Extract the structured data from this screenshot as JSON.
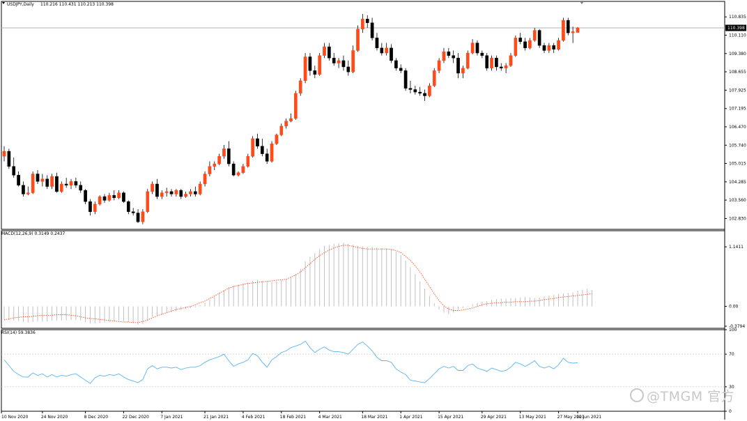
{
  "chart_data": [
    {
      "type": "candlestick",
      "title": "USDJPY,Daily",
      "ohlc_text": "110.216 110.431 110.213 110.398",
      "current_price": 110.398,
      "current_price_label": "110.398",
      "ylim": [
        102.4,
        111.45
      ],
      "y_ticks": [
        "110.835",
        "110.110",
        "109.380",
        "108.655",
        "107.925",
        "107.195",
        "106.470",
        "105.740",
        "105.015",
        "104.285",
        "103.560",
        "102.830"
      ],
      "x_ticks": [
        "10 Nov 2020",
        "24 Nov 2020",
        "8 Dec 2020",
        "22 Dec 2020",
        "7 Jan 2021",
        "21 Jan 2021",
        "4 Feb 2021",
        "18 Feb 2021",
        "4 Mar 2021",
        "18 Mar 2021",
        "1 Apr 2021",
        "15 Apr 2021",
        "29 Apr 2021",
        "13 May 2021",
        "27 May 2021",
        "10 Jun 2021"
      ],
      "up_color": "#ff4a1a",
      "down_color": "#000000",
      "candles": [
        {
          "o": 105.3,
          "h": 105.7,
          "l": 105.1,
          "c": 105.5
        },
        {
          "o": 105.5,
          "h": 105.6,
          "l": 104.8,
          "c": 104.9
        },
        {
          "o": 104.9,
          "h": 105.25,
          "l": 104.45,
          "c": 104.55
        },
        {
          "o": 104.55,
          "h": 104.7,
          "l": 104.1,
          "c": 104.15
        },
        {
          "o": 104.15,
          "h": 104.3,
          "l": 103.7,
          "c": 103.8
        },
        {
          "o": 103.8,
          "h": 104.1,
          "l": 103.75,
          "c": 103.85
        },
        {
          "o": 103.85,
          "h": 104.7,
          "l": 103.8,
          "c": 104.6
        },
        {
          "o": 104.6,
          "h": 104.75,
          "l": 104.2,
          "c": 104.3
        },
        {
          "o": 104.3,
          "h": 104.6,
          "l": 104.1,
          "c": 104.4
        },
        {
          "o": 104.4,
          "h": 104.55,
          "l": 104.0,
          "c": 104.1
        },
        {
          "o": 104.1,
          "h": 104.6,
          "l": 104.0,
          "c": 104.5
        },
        {
          "o": 104.5,
          "h": 104.65,
          "l": 103.85,
          "c": 103.9
        },
        {
          "o": 103.9,
          "h": 104.3,
          "l": 103.85,
          "c": 104.2
        },
        {
          "o": 104.2,
          "h": 104.45,
          "l": 104.05,
          "c": 104.15
        },
        {
          "o": 104.15,
          "h": 104.4,
          "l": 104.0,
          "c": 104.3
        },
        {
          "o": 104.3,
          "h": 104.45,
          "l": 104.05,
          "c": 104.15
        },
        {
          "o": 104.15,
          "h": 104.3,
          "l": 103.85,
          "c": 103.95
        },
        {
          "o": 103.95,
          "h": 104.0,
          "l": 103.4,
          "c": 103.5
        },
        {
          "o": 103.5,
          "h": 103.6,
          "l": 102.95,
          "c": 103.1
        },
        {
          "o": 103.1,
          "h": 103.5,
          "l": 103.0,
          "c": 103.4
        },
        {
          "o": 103.4,
          "h": 103.75,
          "l": 103.35,
          "c": 103.7
        },
        {
          "o": 103.7,
          "h": 103.8,
          "l": 103.45,
          "c": 103.55
        },
        {
          "o": 103.55,
          "h": 103.85,
          "l": 103.5,
          "c": 103.75
        },
        {
          "o": 103.75,
          "h": 103.95,
          "l": 103.55,
          "c": 103.65
        },
        {
          "o": 103.65,
          "h": 103.95,
          "l": 103.6,
          "c": 103.85
        },
        {
          "o": 103.85,
          "h": 103.9,
          "l": 103.45,
          "c": 103.5
        },
        {
          "o": 103.5,
          "h": 103.55,
          "l": 103.0,
          "c": 103.1
        },
        {
          "o": 103.1,
          "h": 103.25,
          "l": 102.95,
          "c": 103.05
        },
        {
          "o": 103.05,
          "h": 103.2,
          "l": 102.65,
          "c": 102.7
        },
        {
          "o": 102.7,
          "h": 103.2,
          "l": 102.6,
          "c": 103.1
        },
        {
          "o": 103.1,
          "h": 104.0,
          "l": 103.05,
          "c": 103.9
        },
        {
          "o": 103.9,
          "h": 104.3,
          "l": 103.8,
          "c": 104.2
        },
        {
          "o": 104.2,
          "h": 104.4,
          "l": 103.6,
          "c": 103.7
        },
        {
          "o": 103.7,
          "h": 103.95,
          "l": 103.6,
          "c": 103.85
        },
        {
          "o": 103.85,
          "h": 104.05,
          "l": 103.7,
          "c": 103.9
        },
        {
          "o": 103.9,
          "h": 104.0,
          "l": 103.7,
          "c": 103.8
        },
        {
          "o": 103.8,
          "h": 104.0,
          "l": 103.7,
          "c": 103.95
        },
        {
          "o": 103.95,
          "h": 104.0,
          "l": 103.6,
          "c": 103.7
        },
        {
          "o": 103.7,
          "h": 103.9,
          "l": 103.65,
          "c": 103.8
        },
        {
          "o": 103.8,
          "h": 104.0,
          "l": 103.7,
          "c": 103.9
        },
        {
          "o": 103.9,
          "h": 104.1,
          "l": 103.7,
          "c": 103.8
        },
        {
          "o": 103.8,
          "h": 104.3,
          "l": 103.75,
          "c": 104.2
        },
        {
          "o": 104.2,
          "h": 104.7,
          "l": 104.1,
          "c": 104.6
        },
        {
          "o": 104.6,
          "h": 105.1,
          "l": 104.5,
          "c": 104.9
        },
        {
          "o": 104.9,
          "h": 105.1,
          "l": 104.75,
          "c": 105.0
        },
        {
          "o": 105.0,
          "h": 105.4,
          "l": 104.95,
          "c": 105.3
        },
        {
          "o": 105.3,
          "h": 105.75,
          "l": 105.2,
          "c": 105.6
        },
        {
          "o": 105.6,
          "h": 105.9,
          "l": 104.9,
          "c": 105.0
        },
        {
          "o": 105.0,
          "h": 105.1,
          "l": 104.5,
          "c": 104.55
        },
        {
          "o": 104.55,
          "h": 104.7,
          "l": 104.5,
          "c": 104.65
        },
        {
          "o": 104.65,
          "h": 105.0,
          "l": 104.6,
          "c": 104.9
        },
        {
          "o": 104.9,
          "h": 105.4,
          "l": 104.85,
          "c": 105.3
        },
        {
          "o": 105.3,
          "h": 106.1,
          "l": 105.25,
          "c": 106.0
        },
        {
          "o": 106.0,
          "h": 106.2,
          "l": 105.6,
          "c": 105.7
        },
        {
          "o": 105.7,
          "h": 106.0,
          "l": 105.3,
          "c": 105.4
        },
        {
          "o": 105.4,
          "h": 105.6,
          "l": 105.0,
          "c": 105.1
        },
        {
          "o": 105.1,
          "h": 105.9,
          "l": 105.05,
          "c": 105.8
        },
        {
          "o": 105.8,
          "h": 106.2,
          "l": 105.75,
          "c": 106.15
        },
        {
          "o": 106.15,
          "h": 106.6,
          "l": 106.1,
          "c": 106.5
        },
        {
          "o": 106.5,
          "h": 106.8,
          "l": 106.4,
          "c": 106.7
        },
        {
          "o": 106.7,
          "h": 107.0,
          "l": 106.65,
          "c": 106.8
        },
        {
          "o": 106.8,
          "h": 107.9,
          "l": 106.75,
          "c": 107.8
        },
        {
          "o": 107.8,
          "h": 108.4,
          "l": 107.7,
          "c": 108.3
        },
        {
          "o": 108.3,
          "h": 109.4,
          "l": 108.2,
          "c": 109.25
        },
        {
          "o": 109.25,
          "h": 109.4,
          "l": 108.5,
          "c": 108.7
        },
        {
          "o": 108.7,
          "h": 108.9,
          "l": 108.4,
          "c": 108.55
        },
        {
          "o": 108.55,
          "h": 109.4,
          "l": 108.5,
          "c": 109.3
        },
        {
          "o": 109.3,
          "h": 109.8,
          "l": 109.2,
          "c": 109.65
        },
        {
          "o": 109.65,
          "h": 109.8,
          "l": 109.1,
          "c": 109.2
        },
        {
          "o": 109.2,
          "h": 109.4,
          "l": 108.9,
          "c": 109.0
        },
        {
          "o": 109.0,
          "h": 109.2,
          "l": 108.8,
          "c": 109.1
        },
        {
          "o": 109.1,
          "h": 109.3,
          "l": 108.7,
          "c": 108.85
        },
        {
          "o": 108.85,
          "h": 109.1,
          "l": 108.5,
          "c": 108.65
        },
        {
          "o": 108.65,
          "h": 109.7,
          "l": 108.6,
          "c": 109.5
        },
        {
          "o": 109.5,
          "h": 110.5,
          "l": 109.45,
          "c": 110.35
        },
        {
          "o": 110.35,
          "h": 110.95,
          "l": 110.2,
          "c": 110.75
        },
        {
          "o": 110.75,
          "h": 110.9,
          "l": 110.4,
          "c": 110.6
        },
        {
          "o": 110.6,
          "h": 110.8,
          "l": 109.9,
          "c": 110.0
        },
        {
          "o": 110.0,
          "h": 110.2,
          "l": 109.5,
          "c": 109.6
        },
        {
          "o": 109.6,
          "h": 109.8,
          "l": 109.3,
          "c": 109.4
        },
        {
          "o": 109.4,
          "h": 109.8,
          "l": 109.3,
          "c": 109.6
        },
        {
          "o": 109.6,
          "h": 109.75,
          "l": 109.0,
          "c": 109.1
        },
        {
          "o": 109.1,
          "h": 109.2,
          "l": 108.7,
          "c": 108.8
        },
        {
          "o": 108.8,
          "h": 108.95,
          "l": 108.6,
          "c": 108.7
        },
        {
          "o": 108.7,
          "h": 108.8,
          "l": 107.9,
          "c": 108.0
        },
        {
          "o": 108.0,
          "h": 108.3,
          "l": 107.8,
          "c": 107.95
        },
        {
          "o": 107.95,
          "h": 108.1,
          "l": 107.75,
          "c": 107.85
        },
        {
          "o": 107.85,
          "h": 108.05,
          "l": 107.7,
          "c": 107.8
        },
        {
          "o": 107.8,
          "h": 107.95,
          "l": 107.5,
          "c": 107.7
        },
        {
          "o": 107.7,
          "h": 108.2,
          "l": 107.65,
          "c": 108.1
        },
        {
          "o": 108.1,
          "h": 108.8,
          "l": 108.05,
          "c": 108.7
        },
        {
          "o": 108.7,
          "h": 109.2,
          "l": 108.6,
          "c": 109.1
        },
        {
          "o": 109.1,
          "h": 109.6,
          "l": 109.0,
          "c": 109.45
        },
        {
          "o": 109.45,
          "h": 109.6,
          "l": 109.2,
          "c": 109.3
        },
        {
          "o": 109.3,
          "h": 109.5,
          "l": 109.0,
          "c": 109.2
        },
        {
          "o": 109.2,
          "h": 109.4,
          "l": 108.4,
          "c": 108.6
        },
        {
          "o": 108.6,
          "h": 108.9,
          "l": 108.4,
          "c": 108.8
        },
        {
          "o": 108.8,
          "h": 109.5,
          "l": 108.75,
          "c": 109.4
        },
        {
          "o": 109.4,
          "h": 109.95,
          "l": 109.35,
          "c": 109.8
        },
        {
          "o": 109.8,
          "h": 109.9,
          "l": 109.3,
          "c": 109.4
        },
        {
          "o": 109.4,
          "h": 109.5,
          "l": 109.2,
          "c": 109.3
        },
        {
          "o": 109.3,
          "h": 109.4,
          "l": 108.7,
          "c": 108.8
        },
        {
          "o": 108.8,
          "h": 109.3,
          "l": 108.7,
          "c": 109.2
        },
        {
          "o": 109.2,
          "h": 109.3,
          "l": 108.7,
          "c": 108.85
        },
        {
          "o": 108.85,
          "h": 109.0,
          "l": 108.7,
          "c": 108.8
        },
        {
          "o": 108.8,
          "h": 109.0,
          "l": 108.6,
          "c": 108.9
        },
        {
          "o": 108.9,
          "h": 109.4,
          "l": 108.85,
          "c": 109.3
        },
        {
          "o": 109.3,
          "h": 110.1,
          "l": 109.25,
          "c": 110.0
        },
        {
          "o": 110.0,
          "h": 110.2,
          "l": 109.75,
          "c": 109.85
        },
        {
          "o": 109.85,
          "h": 110.0,
          "l": 109.5,
          "c": 109.6
        },
        {
          "o": 109.6,
          "h": 110.0,
          "l": 109.55,
          "c": 109.9
        },
        {
          "o": 109.9,
          "h": 110.4,
          "l": 109.85,
          "c": 110.3
        },
        {
          "o": 110.3,
          "h": 110.35,
          "l": 109.6,
          "c": 109.7
        },
        {
          "o": 109.7,
          "h": 109.8,
          "l": 109.4,
          "c": 109.5
        },
        {
          "o": 109.5,
          "h": 109.8,
          "l": 109.4,
          "c": 109.7
        },
        {
          "o": 109.7,
          "h": 109.8,
          "l": 109.4,
          "c": 109.55
        },
        {
          "o": 109.55,
          "h": 110.0,
          "l": 109.5,
          "c": 109.9
        },
        {
          "o": 109.9,
          "h": 110.8,
          "l": 109.85,
          "c": 110.7
        },
        {
          "o": 110.7,
          "h": 110.8,
          "l": 110.1,
          "c": 110.2
        },
        {
          "o": 110.2,
          "h": 110.45,
          "l": 109.8,
          "c": 110.25
        },
        {
          "o": 110.216,
          "h": 110.431,
          "l": 110.213,
          "c": 110.398
        }
      ]
    },
    {
      "type": "bar+line",
      "title": "MACD(12,26,9) 0.3149 0.2437",
      "ylim": [
        -0.42,
        1.45
      ],
      "y_ticks": [
        "1.1411",
        "0.00",
        "-0.3794"
      ],
      "histogram_color": "#c0c0c0",
      "signal_color": "#ff4a1a",
      "histogram": [
        -0.25,
        -0.26,
        -0.27,
        -0.28,
        -0.3,
        -0.31,
        -0.3,
        -0.29,
        -0.29,
        -0.29,
        -0.27,
        -0.27,
        -0.27,
        -0.27,
        -0.26,
        -0.26,
        -0.27,
        -0.3,
        -0.33,
        -0.33,
        -0.32,
        -0.31,
        -0.3,
        -0.29,
        -0.28,
        -0.28,
        -0.3,
        -0.32,
        -0.35,
        -0.34,
        -0.28,
        -0.2,
        -0.18,
        -0.16,
        -0.13,
        -0.11,
        -0.09,
        -0.07,
        -0.05,
        -0.03,
        -0.02,
        0.02,
        0.07,
        0.13,
        0.19,
        0.25,
        0.31,
        0.37,
        0.4,
        0.42,
        0.44,
        0.46,
        0.49,
        0.51,
        0.49,
        0.48,
        0.47,
        0.48,
        0.5,
        0.52,
        0.55,
        0.62,
        0.72,
        0.86,
        0.95,
        1.02,
        1.1,
        1.16,
        1.18,
        1.2,
        1.21,
        1.22,
        1.2,
        1.18,
        1.16,
        1.15,
        1.14,
        1.14,
        1.13,
        1.12,
        1.11,
        1.1,
        1.05,
        0.98,
        0.88,
        0.75,
        0.62,
        0.48,
        0.34,
        0.2,
        0.06,
        -0.06,
        -0.12,
        -0.15,
        -0.12,
        -0.07,
        -0.03,
        0.01,
        0.04,
        0.07,
        0.09,
        0.1,
        0.12,
        0.14,
        0.15,
        0.15,
        0.16,
        0.16,
        0.17,
        0.18,
        0.17,
        0.16,
        0.17,
        0.19,
        0.21,
        0.22,
        0.24,
        0.25,
        0.26,
        0.27,
        0.3,
        0.32,
        0.34,
        0.3149
      ],
      "signal": [
        -0.26,
        -0.24,
        -0.22,
        -0.21,
        -0.2,
        -0.2,
        -0.19,
        -0.18,
        -0.17,
        -0.17,
        -0.17,
        -0.16,
        -0.16,
        -0.16,
        -0.17,
        -0.18,
        -0.2,
        -0.22,
        -0.23,
        -0.24,
        -0.25,
        -0.26,
        -0.27,
        -0.28,
        -0.29,
        -0.3,
        -0.3,
        -0.31,
        -0.31,
        -0.29,
        -0.26,
        -0.22,
        -0.18,
        -0.15,
        -0.12,
        -0.09,
        -0.06,
        -0.04,
        -0.02,
        0.0,
        0.03,
        0.07,
        0.1,
        0.15,
        0.2,
        0.25,
        0.3,
        0.35,
        0.38,
        0.4,
        0.42,
        0.44,
        0.45,
        0.46,
        0.47,
        0.48,
        0.49,
        0.5,
        0.51,
        0.52,
        0.56,
        0.6,
        0.66,
        0.74,
        0.82,
        0.9,
        0.97,
        1.03,
        1.08,
        1.12,
        1.15,
        1.17,
        1.17,
        1.15,
        1.13,
        1.11,
        1.1,
        1.1,
        1.1,
        1.1,
        1.1,
        1.09,
        1.07,
        1.03,
        0.96,
        0.88,
        0.78,
        0.66,
        0.52,
        0.38,
        0.24,
        0.11,
        0.01,
        -0.05,
        -0.08,
        -0.08,
        -0.07,
        -0.05,
        -0.03,
        0.0,
        0.03,
        0.05,
        0.06,
        0.07,
        0.07,
        0.08,
        0.08,
        0.09,
        0.09,
        0.09,
        0.1,
        0.1,
        0.11,
        0.13,
        0.14,
        0.15,
        0.17,
        0.18,
        0.19,
        0.2,
        0.21,
        0.22,
        0.23,
        0.2437
      ]
    },
    {
      "type": "line",
      "title": "RSI(14) 59.3836",
      "ylim": [
        0,
        100
      ],
      "y_ticks": [
        "100",
        "70",
        "30",
        "0"
      ],
      "levels": [
        70,
        30
      ],
      "line_color": "#5ab4f0",
      "values": [
        63,
        56,
        49,
        45,
        42,
        42,
        47,
        44,
        46,
        42,
        45,
        42,
        44,
        43,
        45,
        46,
        42,
        38,
        34,
        41,
        44,
        43,
        45,
        44,
        46,
        42,
        39,
        37,
        35,
        39,
        52,
        56,
        52,
        54,
        54,
        53,
        54,
        51,
        53,
        54,
        54,
        56,
        60,
        63,
        65,
        67,
        70,
        62,
        55,
        58,
        60,
        63,
        71,
        68,
        60,
        54,
        63,
        67,
        72,
        74,
        78,
        80,
        82,
        86,
        78,
        72,
        76,
        79,
        75,
        73,
        73,
        72,
        70,
        76,
        82,
        85,
        80,
        74,
        66,
        62,
        62,
        60,
        52,
        48,
        45,
        38,
        37,
        36,
        35,
        40,
        46,
        52,
        55,
        53,
        55,
        50,
        50,
        56,
        58,
        53,
        51,
        49,
        53,
        51,
        49,
        50,
        54,
        60,
        58,
        55,
        58,
        62,
        55,
        53,
        55,
        52,
        57,
        65,
        60,
        59,
        59.3836
      ]
    }
  ],
  "watermark": {
    "text": "@TMGM 官方"
  }
}
